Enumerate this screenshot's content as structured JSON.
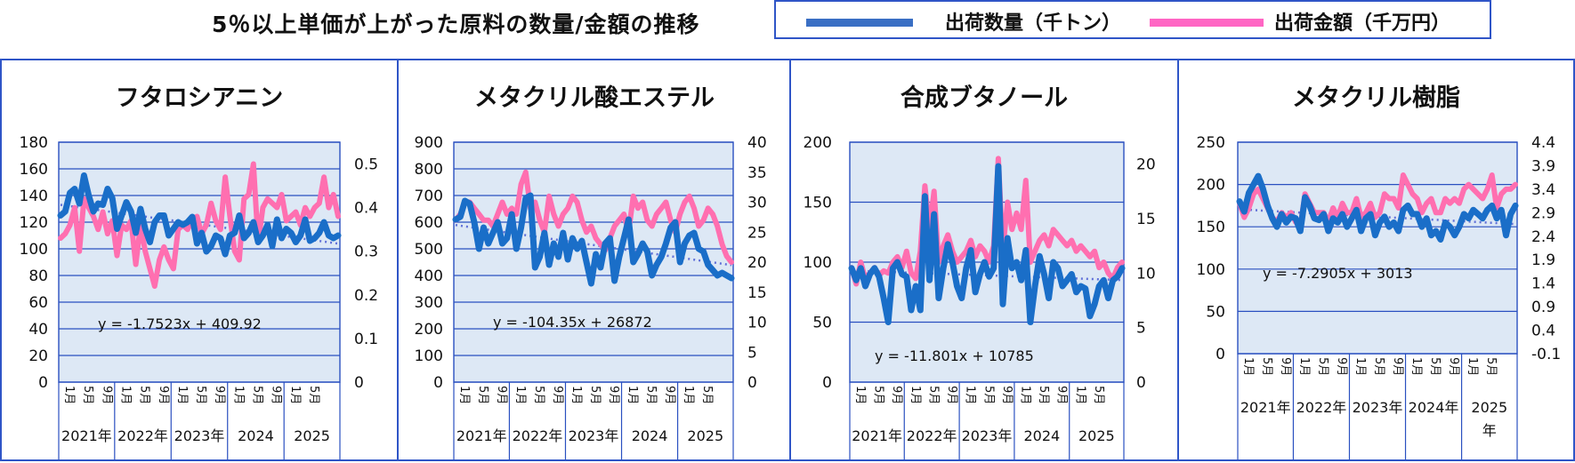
{
  "title": "5％以上単価が上がった原料の数量/金額の推移",
  "legend": {
    "items": [
      {
        "label": "出荷数量（千トン）",
        "color": "#3a6fc4"
      },
      {
        "label": "出荷金額（千万円）",
        "color": "#ff66c4"
      }
    ]
  },
  "colors": {
    "qty": "#1a6ec8",
    "amt": "#ff6fb0",
    "plot_bg": "#dde8f5",
    "grid": "#2a50c0",
    "trend": "#6070d8",
    "frame": "#2f55c7"
  },
  "chart_data": [
    {
      "type": "line",
      "title": "フタロシアニン",
      "x_month_labels": [
        "1月",
        "5月",
        "9月",
        "1月",
        "5月",
        "9月",
        "1月",
        "5月",
        "9月",
        "1月",
        "5月",
        "9月",
        "1月",
        "5月"
      ],
      "x_year_labels": [
        "2021年",
        "2022年",
        "2023年",
        "2024",
        "2025"
      ],
      "ylim": [
        0,
        180
      ],
      "y_ticks": [
        "0",
        "20",
        "40",
        "60",
        "80",
        "100",
        "120",
        "140",
        "160",
        "180"
      ],
      "y2lim": [
        0,
        0.55
      ],
      "y2_ticks": [
        "0",
        "0.1",
        "0.2",
        "0.3",
        "0.4",
        "0.5"
      ],
      "trendline_label": "y = -1.7523x + 409.92",
      "series": [
        {
          "name": "出荷数量（千トン）",
          "axis": "left",
          "values": [
            125,
            128,
            142,
            145,
            134,
            155,
            140,
            128,
            134,
            133,
            145,
            138,
            115,
            125,
            135,
            128,
            112,
            130,
            115,
            105,
            120,
            125,
            125,
            110,
            115,
            120,
            118,
            120,
            124,
            104,
            112,
            98,
            102,
            110,
            108,
            96,
            110,
            112,
            125,
            108,
            112,
            120,
            105,
            110,
            118,
            102,
            122,
            108,
            115,
            112,
            105,
            110,
            122,
            106,
            108,
            112,
            120,
            110,
            108,
            110
          ]
        },
        {
          "name": "出荷金額（千万円）",
          "axis": "right",
          "values": [
            0.33,
            0.34,
            0.36,
            0.4,
            0.3,
            0.42,
            0.4,
            0.38,
            0.35,
            0.39,
            0.34,
            0.37,
            0.29,
            0.36,
            0.35,
            0.37,
            0.27,
            0.36,
            0.3,
            0.26,
            0.22,
            0.28,
            0.31,
            0.28,
            0.26,
            0.35,
            0.36,
            0.35,
            0.37,
            0.38,
            0.34,
            0.36,
            0.41,
            0.37,
            0.35,
            0.47,
            0.38,
            0.3,
            0.28,
            0.42,
            0.43,
            0.5,
            0.32,
            0.4,
            0.42,
            0.41,
            0.4,
            0.43,
            0.37,
            0.38,
            0.39,
            0.36,
            0.4,
            0.38,
            0.4,
            0.41,
            0.47,
            0.4,
            0.43,
            0.38
          ]
        }
      ]
    },
    {
      "type": "line",
      "title": "メタクリル酸エステル",
      "x_month_labels": [
        "1月",
        "5月",
        "9月",
        "1月",
        "5月",
        "9月",
        "1月",
        "5月",
        "9月",
        "1月",
        "5月",
        "9月",
        "1月",
        "5月"
      ],
      "x_year_labels": [
        "2021年",
        "2022年",
        "2023年",
        "2024",
        "2025"
      ],
      "ylim": [
        0,
        900
      ],
      "y_ticks": [
        "0",
        "100",
        "200",
        "300",
        "400",
        "500",
        "600",
        "700",
        "800",
        "900"
      ],
      "y2lim": [
        0,
        40
      ],
      "y2_ticks": [
        "0",
        "5",
        "10",
        "15",
        "20",
        "25",
        "30",
        "35",
        "40"
      ],
      "trendline_label": "y = -104.35x + 26872",
      "series": [
        {
          "name": "出荷数量（千トン）",
          "axis": "left",
          "values": [
            610,
            620,
            680,
            670,
            600,
            500,
            580,
            520,
            560,
            600,
            520,
            540,
            630,
            500,
            580,
            690,
            700,
            430,
            470,
            560,
            440,
            520,
            470,
            560,
            460,
            540,
            500,
            530,
            450,
            370,
            480,
            430,
            520,
            540,
            380,
            470,
            540,
            610,
            450,
            480,
            520,
            490,
            400,
            440,
            470,
            520,
            580,
            600,
            450,
            520,
            550,
            560,
            500,
            490,
            440,
            420,
            400,
            410,
            400,
            390
          ]
        },
        {
          "name": "出荷金額（千万円）",
          "axis": "right",
          "values": [
            27,
            28,
            30,
            30,
            29,
            28,
            27,
            27,
            26,
            28,
            30,
            28,
            29,
            28,
            33,
            35,
            29,
            30,
            27,
            25,
            31,
            28,
            26,
            28,
            29,
            31,
            30,
            27,
            25,
            26,
            24,
            23,
            22,
            24,
            26,
            27,
            28,
            25,
            31,
            29,
            30,
            27,
            26,
            28,
            29,
            30,
            27,
            25,
            28,
            30,
            31,
            29,
            26,
            27,
            29,
            28,
            26,
            23,
            21,
            20
          ]
        }
      ]
    },
    {
      "type": "line",
      "title": "合成ブタノール",
      "x_month_labels": [
        "1月",
        "5月",
        "9月",
        "1月",
        "5月",
        "9月",
        "1月",
        "5月",
        "9月",
        "1月",
        "5月",
        "9月",
        "1月",
        "5月"
      ],
      "x_year_labels": [
        "2021年",
        "2022年",
        "2023年",
        "2024",
        "2025"
      ],
      "ylim": [
        0,
        200
      ],
      "y_ticks": [
        "0",
        "50",
        "100",
        "150",
        "200"
      ],
      "y2lim": [
        0,
        22
      ],
      "y2_ticks": [
        "0",
        "5",
        "10",
        "15",
        "20"
      ],
      "trendline_label": "y = -11.801x + 10785",
      "series": [
        {
          "name": "出荷数量（千トン）",
          "axis": "left",
          "values": [
            95,
            85,
            95,
            80,
            90,
            95,
            88,
            70,
            50,
            95,
            100,
            90,
            88,
            60,
            80,
            60,
            155,
            85,
            140,
            70,
            95,
            115,
            100,
            80,
            70,
            95,
            110,
            75,
            90,
            100,
            88,
            95,
            180,
            65,
            120,
            95,
            100,
            85,
            110,
            50,
            80,
            105,
            90,
            70,
            100,
            95,
            80,
            85,
            90,
            75,
            80,
            78,
            55,
            65,
            80,
            85,
            70,
            85,
            88,
            95
          ]
        },
        {
          "name": "出荷金額（千万円）",
          "axis": "right",
          "values": [
            10.5,
            9.0,
            11.0,
            9.5,
            10.0,
            10.5,
            9.8,
            10.2,
            10.0,
            11.0,
            11.5,
            10.5,
            12.0,
            10.0,
            9.5,
            12.0,
            18.0,
            14.0,
            17.5,
            11.0,
            12.5,
            13.5,
            12.0,
            11.0,
            11.5,
            12.0,
            13.0,
            11.5,
            12.5,
            12.0,
            11.0,
            12.5,
            20.5,
            12.0,
            16.5,
            14.0,
            15.5,
            14.0,
            18.5,
            11.0,
            12.0,
            13.0,
            13.5,
            12.5,
            14.0,
            13.5,
            13.0,
            12.5,
            13.0,
            12.0,
            12.5,
            12.0,
            11.5,
            12.0,
            10.5,
            11.0,
            10.0,
            9.5,
            10.5,
            11.0
          ]
        }
      ]
    },
    {
      "type": "line",
      "title": "メタクリル樹脂",
      "x_month_labels": [
        "1月",
        "5月",
        "9月",
        "1月",
        "5月",
        "9月",
        "1月",
        "5月",
        "9月",
        "1月",
        "5月",
        "9月",
        "1月",
        "5月"
      ],
      "x_year_labels": [
        "2021年",
        "2022年",
        "2023年",
        "2024年",
        "2025年"
      ],
      "ylim": [
        0,
        250
      ],
      "y_ticks": [
        "0",
        "50",
        "100",
        "150",
        "200",
        "250"
      ],
      "y2lim": [
        -0.1,
        4.4
      ],
      "y2_ticks": [
        "-0.1",
        "0.4",
        "0.9",
        "1.4",
        "1.9",
        "2.4",
        "2.9",
        "3.4",
        "3.9",
        "4.4"
      ],
      "trendline_label": "y = -7.2905x + 3013",
      "series": [
        {
          "name": "出荷数量（千トン）",
          "axis": "left",
          "values": [
            180,
            168,
            190,
            200,
            210,
            195,
            175,
            160,
            150,
            165,
            155,
            162,
            160,
            145,
            185,
            175,
            160,
            158,
            165,
            145,
            160,
            155,
            165,
            150,
            160,
            170,
            145,
            160,
            165,
            140,
            155,
            162,
            150,
            155,
            145,
            170,
            175,
            165,
            165,
            150,
            160,
            140,
            145,
            135,
            155,
            150,
            140,
            150,
            165,
            160,
            170,
            165,
            160,
            170,
            175,
            160,
            170,
            140,
            165,
            175
          ]
        },
        {
          "name": "出荷金額（千万円）",
          "axis": "right",
          "values": [
            3.1,
            2.8,
            3.0,
            3.3,
            3.4,
            3.2,
            3.0,
            2.8,
            2.7,
            2.9,
            2.8,
            2.9,
            2.7,
            2.6,
            3.3,
            3.1,
            2.9,
            2.9,
            2.9,
            2.7,
            3.0,
            2.8,
            3.1,
            2.9,
            2.9,
            3.2,
            2.8,
            2.9,
            3.1,
            2.8,
            2.9,
            3.3,
            3.2,
            3.2,
            3.0,
            3.7,
            3.5,
            3.3,
            3.2,
            2.9,
            3.1,
            3.2,
            2.9,
            2.9,
            3.2,
            3.1,
            3.2,
            3.1,
            3.4,
            3.5,
            3.4,
            3.3,
            3.2,
            3.4,
            3.7,
            3.0,
            3.3,
            3.4,
            3.4,
            3.5
          ]
        }
      ]
    }
  ]
}
